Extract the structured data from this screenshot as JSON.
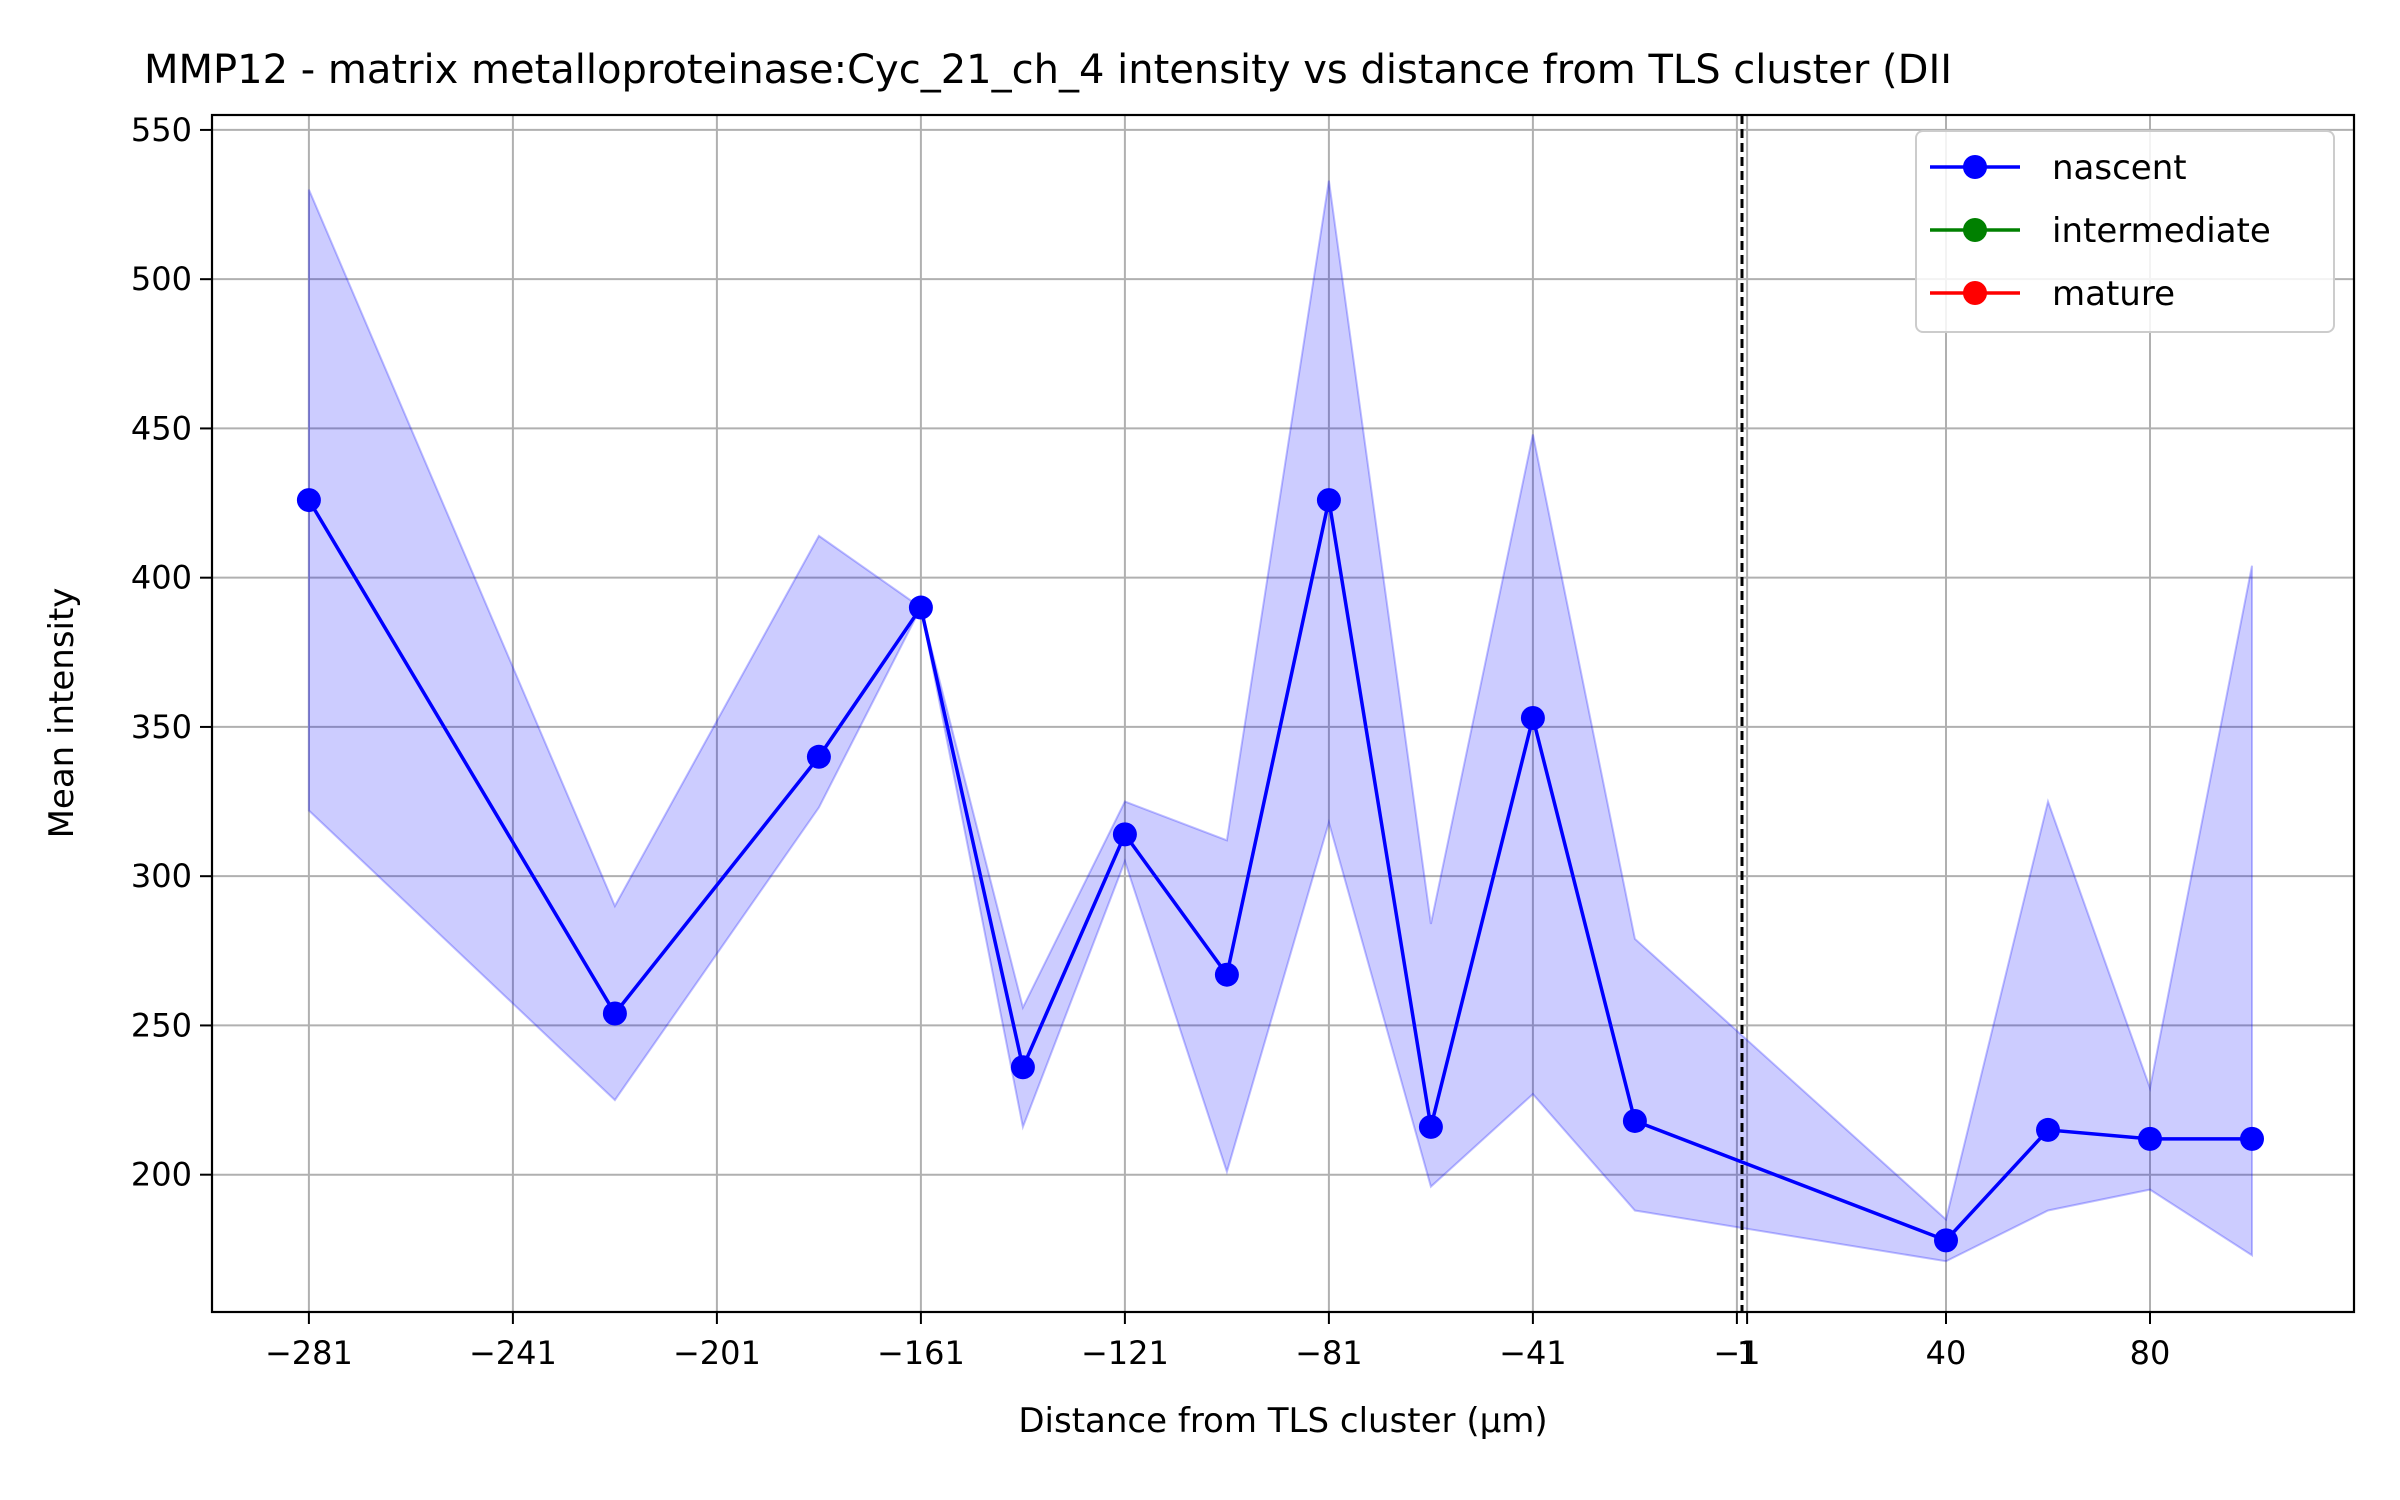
{
  "chart_data": {
    "type": "line",
    "title": "MMP12 - matrix metalloproteinase:Cyc_21_ch_4 intensity vs distance from TLS cluster (DII",
    "xlabel": "Distance from TLS cluster (μm)",
    "ylabel": "Mean intensity",
    "xlim": [
      -300,
      120
    ],
    "ylim": [
      154,
      555
    ],
    "x_ticks": [
      -281,
      -241,
      -201,
      -161,
      -121,
      -81,
      -41,
      -1,
      1,
      40,
      80
    ],
    "x_tick_labels": [
      "−281",
      "−241",
      "−201",
      "−161",
      "−121",
      "−81",
      "−41",
      "−1",
      "1",
      "40",
      "80"
    ],
    "y_ticks": [
      200,
      250,
      300,
      350,
      400,
      450,
      500,
      550
    ],
    "grid": true,
    "legend_position": "top-right",
    "reference_line_x": 0,
    "series": [
      {
        "name": "nascent",
        "color": "#0000ff",
        "x": [
          -281,
          -221,
          -181,
          -161,
          -141,
          -121,
          -101,
          -81,
          -61,
          -41,
          -21,
          40,
          60,
          80,
          100
        ],
        "y": [
          426,
          254,
          340,
          390,
          236,
          314,
          267,
          426,
          216,
          353,
          218,
          178,
          215,
          212,
          212
        ],
        "lower": [
          322,
          225,
          323,
          390,
          216,
          305,
          201,
          318,
          196,
          227,
          188,
          171,
          188,
          195,
          173
        ],
        "upper": [
          530,
          290,
          414,
          390,
          256,
          325,
          312,
          533,
          284,
          448,
          279,
          185,
          325,
          229,
          404
        ]
      },
      {
        "name": "intermediate",
        "color": "#008000",
        "x": [],
        "y": []
      },
      {
        "name": "mature",
        "color": "#ff0000",
        "x": [],
        "y": []
      }
    ]
  }
}
